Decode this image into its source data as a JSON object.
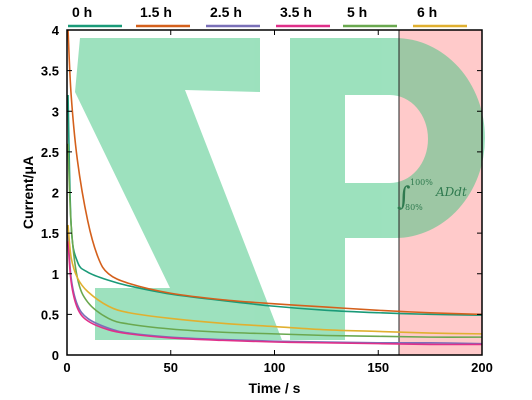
{
  "chart_data": {
    "type": "line",
    "xlabel": "Time / s",
    "ylabel": "Current/μA",
    "xlim": [
      0,
      200
    ],
    "ylim": [
      0,
      4
    ],
    "xticks": [
      0,
      50,
      100,
      150,
      200
    ],
    "yticks": [
      0,
      0.5,
      1,
      1.5,
      2,
      2.5,
      3,
      3.5,
      4
    ],
    "grid": false,
    "legend_position": "top",
    "series": [
      {
        "name": "0 h",
        "color": "#1a9a78",
        "x": [
          0.5,
          2,
          5,
          10,
          20,
          30,
          50,
          75,
          100,
          125,
          150,
          175,
          200
        ],
        "y": [
          3.2,
          1.6,
          1.15,
          1.02,
          0.92,
          0.85,
          0.75,
          0.67,
          0.6,
          0.55,
          0.52,
          0.5,
          0.49
        ]
      },
      {
        "name": "1.5 h",
        "color": "#d4601c",
        "x": [
          0.5,
          2,
          5,
          10,
          15,
          20,
          30,
          50,
          75,
          100,
          125,
          150,
          175,
          200
        ],
        "y": [
          4.0,
          3.2,
          2.4,
          1.65,
          1.2,
          1.0,
          0.88,
          0.76,
          0.68,
          0.63,
          0.59,
          0.55,
          0.52,
          0.5
        ]
      },
      {
        "name": "2.5 h",
        "color": "#7a70b8",
        "x": [
          0.5,
          2,
          5,
          10,
          20,
          30,
          50,
          75,
          100,
          125,
          150,
          175,
          200
        ],
        "y": [
          1.5,
          0.95,
          0.62,
          0.45,
          0.33,
          0.27,
          0.22,
          0.19,
          0.17,
          0.16,
          0.15,
          0.15,
          0.14
        ]
      },
      {
        "name": "3.5 h",
        "color": "#e0308a",
        "x": [
          0.5,
          2,
          5,
          10,
          20,
          30,
          50,
          75,
          100,
          125,
          150,
          175,
          200
        ],
        "y": [
          1.4,
          0.9,
          0.58,
          0.42,
          0.31,
          0.26,
          0.21,
          0.18,
          0.16,
          0.15,
          0.14,
          0.13,
          0.13
        ]
      },
      {
        "name": "5 h",
        "color": "#6aa84f",
        "x": [
          0.5,
          2,
          5,
          10,
          20,
          30,
          50,
          75,
          100,
          125,
          150,
          175,
          200
        ],
        "y": [
          2.6,
          1.6,
          0.95,
          0.65,
          0.45,
          0.38,
          0.32,
          0.28,
          0.26,
          0.24,
          0.23,
          0.22,
          0.22
        ]
      },
      {
        "name": "6 h",
        "color": "#e0b030",
        "x": [
          0.5,
          2,
          5,
          10,
          20,
          30,
          50,
          75,
          100,
          125,
          150,
          175,
          200
        ],
        "y": [
          1.6,
          1.2,
          0.95,
          0.78,
          0.6,
          0.52,
          0.45,
          0.39,
          0.35,
          0.31,
          0.29,
          0.27,
          0.26
        ]
      }
    ],
    "highlight_region": {
      "x": [
        160,
        200
      ],
      "color": "#ff9e9e"
    },
    "annotation": {
      "sup": "100%",
      "sub": "80%",
      "expr": "ADdt",
      "color": "#2f7a4f"
    },
    "watermark": {
      "text": "ZP",
      "color": "#3cc47e"
    }
  }
}
